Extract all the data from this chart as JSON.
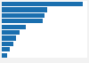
{
  "bars": [
    {
      "value": 100
    },
    {
      "value": 56
    },
    {
      "value": 53
    },
    {
      "value": 50
    },
    {
      "value": 30
    },
    {
      "value": 22
    },
    {
      "value": 17
    },
    {
      "value": 14
    },
    {
      "value": 10
    },
    {
      "value": 7
    }
  ],
  "bar_color": "#1a6faf",
  "background_color": "#f2f2f2",
  "plot_bg_color": "#ffffff",
  "xlim": [
    0,
    105
  ],
  "grid_color": "#d0d0d0"
}
